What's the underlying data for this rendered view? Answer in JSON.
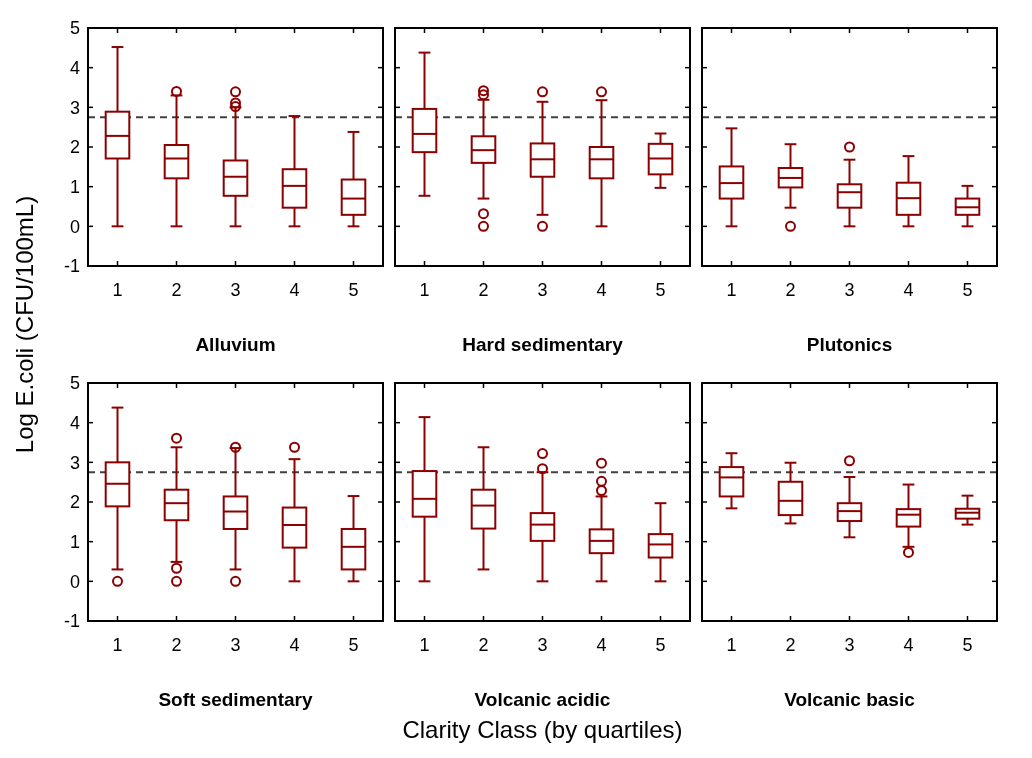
{
  "chart_data": [
    {
      "type": "box",
      "title": "Alluvium",
      "ylabel": "Log E.coli (CFU/100mL)",
      "categories": [
        "1",
        "2",
        "3",
        "4",
        "5"
      ],
      "ylim": [
        -1,
        5
      ],
      "yticks": [
        -1,
        0,
        1,
        2,
        3,
        4,
        5
      ],
      "color": "#8b0000",
      "ref_lines": [
        {
          "axis": "y",
          "value": 2.75,
          "color": "#404040",
          "line_style": "dashed"
        }
      ],
      "boxes": [
        {
          "low": 0,
          "q1": 1.71,
          "median": 2.28,
          "q3": 2.89,
          "high": 4.52
        },
        {
          "low": 0,
          "q1": 1.21,
          "median": 1.71,
          "q3": 2.05,
          "high": 3.3,
          "outliers": [
            3.4
          ]
        },
        {
          "low": 0,
          "q1": 0.77,
          "median": 1.25,
          "q3": 1.66,
          "high": 3.0,
          "outliers": [
            3.39,
            3.11,
            3.02
          ]
        },
        {
          "low": 0,
          "q1": 0.47,
          "median": 1.02,
          "q3": 1.44,
          "high": 2.78
        },
        {
          "low": 0,
          "q1": 0.29,
          "median": 0.7,
          "q3": 1.18,
          "high": 2.38
        }
      ]
    },
    {
      "type": "box",
      "title": "Hard sedimentary",
      "categories": [
        "1",
        "2",
        "3",
        "4",
        "5"
      ],
      "ylim": [
        -1,
        5
      ],
      "yticks": [
        -1,
        0,
        1,
        2,
        3,
        4,
        5
      ],
      "tick_labels": "x",
      "color": "#8b0000",
      "ref_lines": [
        {
          "axis": "y",
          "value": 2.75,
          "color": "#404040",
          "line_style": "dashed"
        }
      ],
      "boxes": [
        {
          "low": 0.77,
          "q1": 1.87,
          "median": 2.33,
          "q3": 2.96,
          "high": 4.38
        },
        {
          "low": 0.7,
          "q1": 1.6,
          "median": 1.92,
          "q3": 2.27,
          "high": 3.19,
          "outliers": [
            3.42,
            3.32,
            0.32,
            0
          ]
        },
        {
          "low": 0.29,
          "q1": 1.25,
          "median": 1.69,
          "q3": 2.09,
          "high": 3.14,
          "outliers": [
            3.39,
            0
          ]
        },
        {
          "low": 0,
          "q1": 1.21,
          "median": 1.69,
          "q3": 2.0,
          "high": 3.18,
          "outliers": [
            3.39
          ]
        },
        {
          "low": 0.97,
          "q1": 1.31,
          "median": 1.71,
          "q3": 2.08,
          "high": 2.34
        }
      ]
    },
    {
      "type": "box",
      "title": "Plutonics",
      "categories": [
        "1",
        "2",
        "3",
        "4",
        "5"
      ],
      "ylim": [
        -1,
        5
      ],
      "yticks": [
        -1,
        0,
        1,
        2,
        3,
        4,
        5
      ],
      "tick_labels": "x",
      "color": "#8b0000",
      "ref_lines": [
        {
          "axis": "y",
          "value": 2.75,
          "color": "#404040",
          "line_style": "dashed"
        }
      ],
      "boxes": [
        {
          "low": 0,
          "q1": 0.7,
          "median": 1.09,
          "q3": 1.51,
          "high": 2.47
        },
        {
          "low": 0.47,
          "q1": 0.98,
          "median": 1.22,
          "q3": 1.47,
          "high": 2.07,
          "outliers": [
            0
          ]
        },
        {
          "low": 0,
          "q1": 0.47,
          "median": 0.86,
          "q3": 1.06,
          "high": 1.68,
          "outliers": [
            2.0
          ]
        },
        {
          "low": 0,
          "q1": 0.29,
          "median": 0.71,
          "q3": 1.1,
          "high": 1.77
        },
        {
          "low": 0,
          "q1": 0.29,
          "median": 0.48,
          "q3": 0.7,
          "high": 1.02
        }
      ]
    },
    {
      "type": "box",
      "title": "Soft sedimentary",
      "categories": [
        "1",
        "2",
        "3",
        "4",
        "5"
      ],
      "ylim": [
        -1,
        5
      ],
      "yticks": [
        -1,
        0,
        1,
        2,
        3,
        4,
        5
      ],
      "color": "#8b0000",
      "ref_lines": [
        {
          "axis": "y",
          "value": 2.75,
          "color": "#404040",
          "line_style": "dashed"
        }
      ],
      "boxes": [
        {
          "low": 0.3,
          "q1": 1.89,
          "median": 2.46,
          "q3": 3.0,
          "high": 4.38,
          "outliers": [
            0
          ]
        },
        {
          "low": 0.49,
          "q1": 1.54,
          "median": 1.97,
          "q3": 2.31,
          "high": 3.38,
          "outliers": [
            3.61,
            0.33,
            0
          ]
        },
        {
          "low": 0.3,
          "q1": 1.32,
          "median": 1.76,
          "q3": 2.14,
          "high": 3.36,
          "outliers": [
            3.38,
            0
          ]
        },
        {
          "low": 0,
          "q1": 0.85,
          "median": 1.42,
          "q3": 1.86,
          "high": 3.08,
          "outliers": [
            3.38
          ]
        },
        {
          "low": 0,
          "q1": 0.3,
          "median": 0.87,
          "q3": 1.32,
          "high": 2.15
        }
      ]
    },
    {
      "type": "box",
      "title": "Volcanic acidic",
      "xlabel": "Clarity Class (by quartiles)",
      "categories": [
        "1",
        "2",
        "3",
        "4",
        "5"
      ],
      "ylim": [
        -1,
        5
      ],
      "yticks": [
        -1,
        0,
        1,
        2,
        3,
        4,
        5
      ],
      "tick_labels": "x",
      "color": "#8b0000",
      "ref_lines": [
        {
          "axis": "y",
          "value": 2.75,
          "color": "#404040",
          "line_style": "dashed"
        }
      ],
      "boxes": [
        {
          "low": 0,
          "q1": 1.63,
          "median": 2.08,
          "q3": 2.78,
          "high": 4.14
        },
        {
          "low": 0.3,
          "q1": 1.33,
          "median": 1.91,
          "q3": 2.31,
          "high": 3.38
        },
        {
          "low": 0,
          "q1": 1.02,
          "median": 1.43,
          "q3": 1.72,
          "high": 2.75,
          "outliers": [
            3.22,
            2.84
          ]
        },
        {
          "low": 0,
          "q1": 0.71,
          "median": 1.02,
          "q3": 1.31,
          "high": 2.14,
          "outliers": [
            2.98,
            2.52,
            2.29
          ]
        },
        {
          "low": 0,
          "q1": 0.6,
          "median": 0.93,
          "q3": 1.19,
          "high": 1.97
        }
      ]
    },
    {
      "type": "box",
      "title": "Volcanic basic",
      "categories": [
        "1",
        "2",
        "3",
        "4",
        "5"
      ],
      "ylim": [
        -1,
        5
      ],
      "yticks": [
        -1,
        0,
        1,
        2,
        3,
        4,
        5
      ],
      "tick_labels": "x",
      "color": "#8b0000",
      "ref_lines": [
        {
          "axis": "y",
          "value": 2.75,
          "color": "#404040",
          "line_style": "dashed"
        }
      ],
      "boxes": [
        {
          "low": 1.84,
          "q1": 2.14,
          "median": 2.62,
          "q3": 2.88,
          "high": 3.23
        },
        {
          "low": 1.46,
          "q1": 1.67,
          "median": 2.03,
          "q3": 2.51,
          "high": 2.99
        },
        {
          "low": 1.11,
          "q1": 1.52,
          "median": 1.77,
          "q3": 1.97,
          "high": 2.63,
          "outliers": [
            3.04
          ]
        },
        {
          "low": 0.87,
          "q1": 1.38,
          "median": 1.68,
          "q3": 1.82,
          "high": 2.44,
          "outliers": [
            0.73
          ]
        },
        {
          "low": 1.43,
          "q1": 1.58,
          "median": 1.73,
          "q3": 1.83,
          "high": 2.16
        }
      ]
    }
  ]
}
